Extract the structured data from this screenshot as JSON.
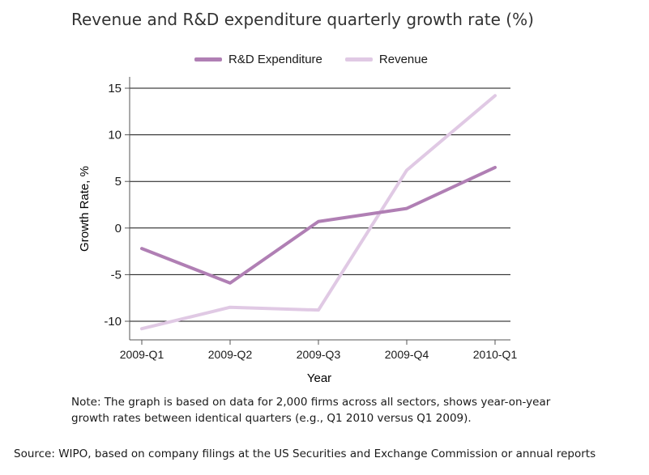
{
  "title": "Revenue and R&D expenditure quarterly growth rate (%)",
  "note": "Note: The graph is based on data for 2,000 firms across all sectors, shows year-on-year growth rates between identical quarters (e.g., Q1 2010 versus Q1 2009).",
  "source": "Source: WIPO, based on company filings at the US Securities and Exchange Commission or annual reports",
  "colors": {
    "rd": "#b07fb4",
    "revenue": "#e0c9e4",
    "grid": "#111111",
    "axis": "#555555"
  },
  "chart_data": {
    "type": "line",
    "title": "Revenue and R&D expenditure quarterly growth rate (%)",
    "xlabel": "Year",
    "ylabel": "Growth Rate, %",
    "categories": [
      "2009-Q1",
      "2009-Q2",
      "2009-Q3",
      "2009-Q4",
      "2010-Q1"
    ],
    "yticks": [
      15,
      10,
      5,
      0,
      -5,
      -10
    ],
    "ylim": [
      -11,
      16
    ],
    "grid": true,
    "legend_position": "top",
    "series": [
      {
        "name": "R&D Expenditure",
        "color": "#b07fb4",
        "values": [
          -2.2,
          -5.9,
          0.7,
          2.1,
          6.5
        ]
      },
      {
        "name": "Revenue",
        "color": "#e0c9e4",
        "values": [
          -10.8,
          -8.5,
          -8.8,
          6.2,
          14.2
        ]
      }
    ]
  }
}
